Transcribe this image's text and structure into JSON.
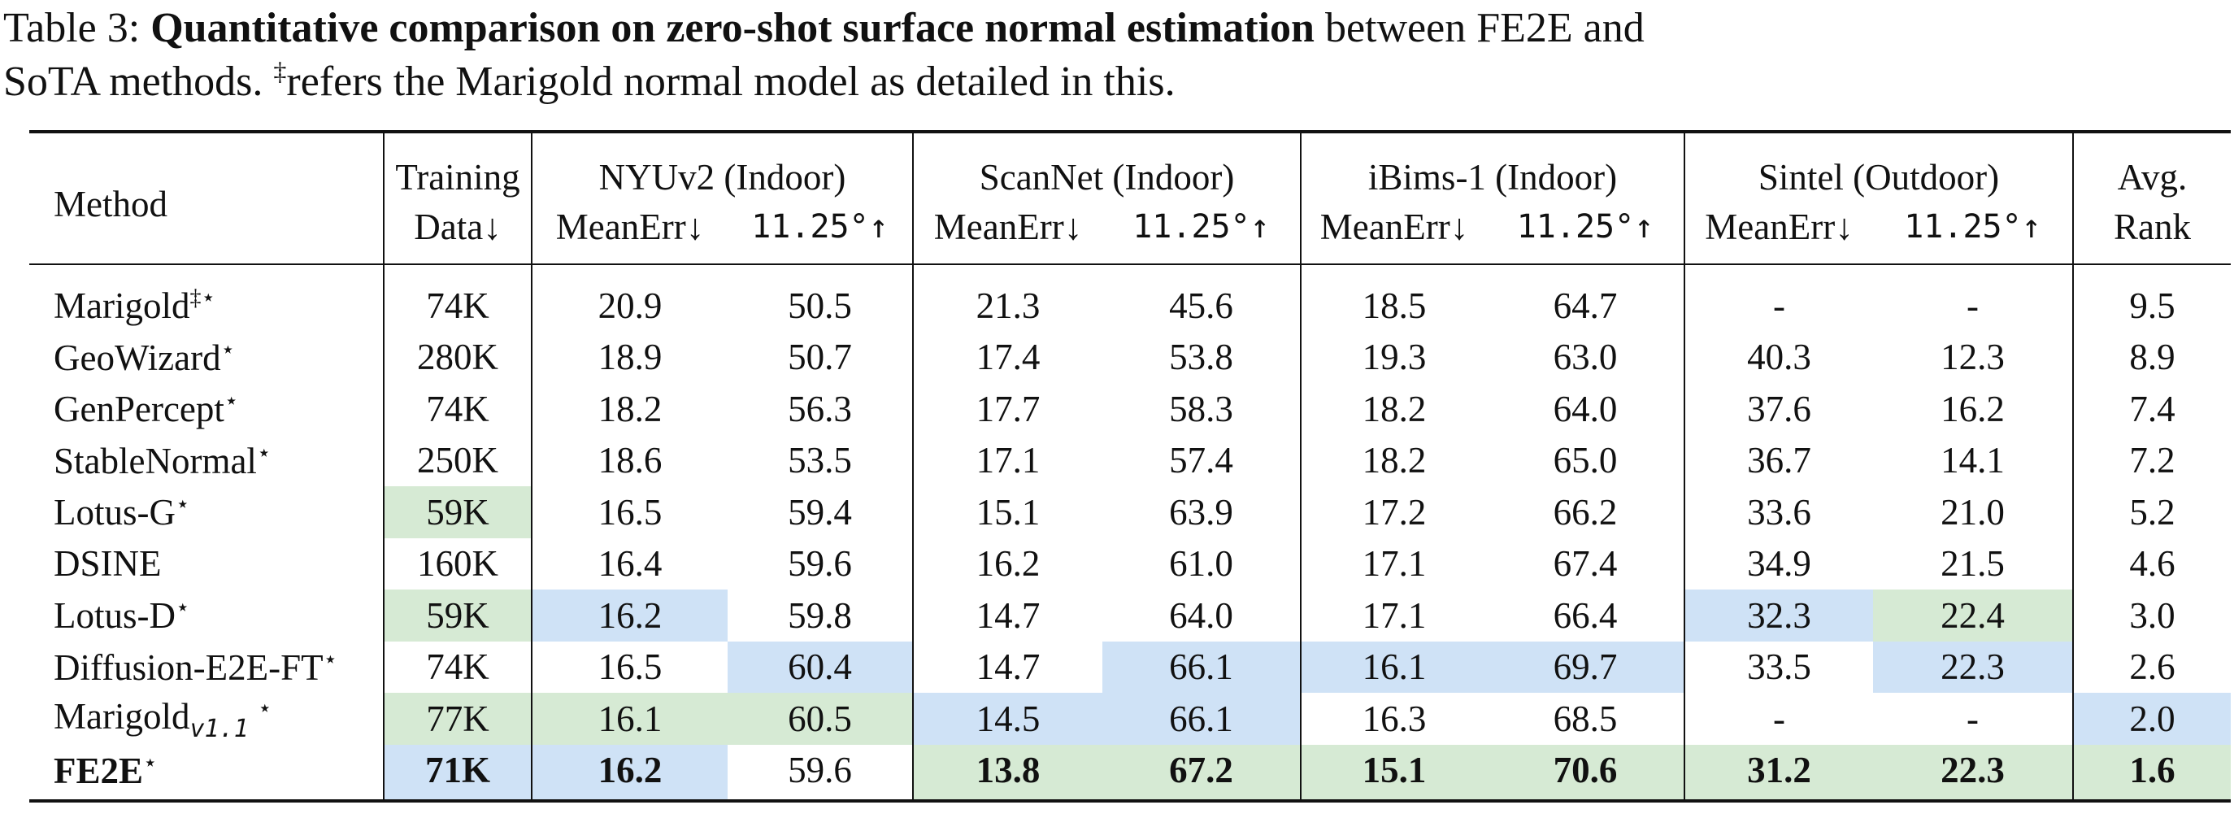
{
  "caption": {
    "label": "Table 3:",
    "bold_text": "Quantitative comparison on zero-shot surface normal estimation",
    "rest_line1": " between FE2E and",
    "line2_pre": "SoTA methods. ",
    "dagger": "‡",
    "line2_post": "refers the Marigold normal model as detailed in this."
  },
  "table": {
    "headers": {
      "method": "Method",
      "training_top": "Training",
      "training_bottom": "Data↓",
      "groups": [
        "NYUv2 (Indoor)",
        "ScanNet (Indoor)",
        "iBims-1 (Indoor)",
        "Sintel (Outdoor)"
      ],
      "meanerr": "MeanErr↓",
      "acc": "11.25°↑",
      "avg_top": "Avg.",
      "avg_bottom": "Rank"
    },
    "rows": [
      {
        "method": "Marigold",
        "sup": "‡⋆",
        "sub": "",
        "data": "74K",
        "vals": [
          "20.9",
          "50.5",
          "21.3",
          "45.6",
          "18.5",
          "64.7",
          "-",
          "-"
        ],
        "rank": "9.5"
      },
      {
        "method": "GeoWizard",
        "sup": "⋆",
        "sub": "",
        "data": "280K",
        "vals": [
          "18.9",
          "50.7",
          "17.4",
          "53.8",
          "19.3",
          "63.0",
          "40.3",
          "12.3"
        ],
        "rank": "8.9"
      },
      {
        "method": "GenPercept",
        "sup": "⋆",
        "sub": "",
        "data": "74K",
        "vals": [
          "18.2",
          "56.3",
          "17.7",
          "58.3",
          "18.2",
          "64.0",
          "37.6",
          "16.2"
        ],
        "rank": "7.4"
      },
      {
        "method": "StableNormal",
        "sup": "⋆",
        "sub": "",
        "data": "250K",
        "vals": [
          "18.6",
          "53.5",
          "17.1",
          "57.4",
          "18.2",
          "65.0",
          "36.7",
          "14.1"
        ],
        "rank": "7.2"
      },
      {
        "method": "Lotus-G",
        "sup": "⋆",
        "sub": "",
        "data": "59K",
        "vals": [
          "16.5",
          "59.4",
          "15.1",
          "63.9",
          "17.2",
          "66.2",
          "33.6",
          "21.0"
        ],
        "rank": "5.2"
      },
      {
        "method": "DSINE",
        "sup": "",
        "sub": "",
        "data": "160K",
        "vals": [
          "16.4",
          "59.6",
          "16.2",
          "61.0",
          "17.1",
          "67.4",
          "34.9",
          "21.5"
        ],
        "rank": "4.6"
      },
      {
        "method": "Lotus-D",
        "sup": "⋆",
        "sub": "",
        "data": "59K",
        "vals": [
          "16.2",
          "59.8",
          "14.7",
          "64.0",
          "17.1",
          "66.4",
          "32.3",
          "22.4"
        ],
        "rank": "3.0"
      },
      {
        "method": "Diffusion-E2E-FT",
        "sup": "⋆",
        "sub": "",
        "data": "74K",
        "vals": [
          "16.5",
          "60.4",
          "14.7",
          "66.1",
          "16.1",
          "69.7",
          "33.5",
          "22.3"
        ],
        "rank": "2.6"
      },
      {
        "method": "Marigold",
        "sup": "⋆",
        "sub": "v1.1",
        "data": "77K",
        "vals": [
          "16.1",
          "60.5",
          "14.5",
          "66.1",
          "16.3",
          "68.5",
          "-",
          "-"
        ],
        "rank": "2.0"
      },
      {
        "method": "FE2E",
        "sup": "⋆",
        "sub": "",
        "data": "71K",
        "vals": [
          "16.2",
          "59.6",
          "13.8",
          "67.2",
          "15.1",
          "70.6",
          "31.2",
          "22.3"
        ],
        "rank": "1.6"
      }
    ],
    "highlight_colors": {
      "blue": "#cfe2f6",
      "green": "#d6ead4"
    },
    "highlights": [
      {
        "row": 4,
        "col": 0,
        "color": "green"
      },
      {
        "row": 6,
        "col": 0,
        "color": "green"
      },
      {
        "row": 6,
        "col": 1,
        "color": "blue"
      },
      {
        "row": 6,
        "col": 7,
        "color": "blue"
      },
      {
        "row": 6,
        "col": 8,
        "color": "green"
      },
      {
        "row": 7,
        "col": 2,
        "color": "blue"
      },
      {
        "row": 7,
        "col": 4,
        "color": "blue"
      },
      {
        "row": 7,
        "col": 5,
        "color": "blue"
      },
      {
        "row": 7,
        "col": 6,
        "color": "blue"
      },
      {
        "row": 7,
        "col": 8,
        "color": "blue"
      },
      {
        "row": 8,
        "col": 0,
        "color": "green"
      },
      {
        "row": 8,
        "col": 1,
        "color": "green"
      },
      {
        "row": 8,
        "col": 2,
        "color": "green"
      },
      {
        "row": 8,
        "col": 3,
        "color": "blue"
      },
      {
        "row": 8,
        "col": 4,
        "color": "blue"
      },
      {
        "row": 8,
        "col": 9,
        "color": "blue"
      },
      {
        "row": 9,
        "col": 0,
        "color": "blue"
      },
      {
        "row": 9,
        "col": 1,
        "color": "blue"
      },
      {
        "row": 9,
        "col": 3,
        "color": "green"
      },
      {
        "row": 9,
        "col": 4,
        "color": "green"
      },
      {
        "row": 9,
        "col": 5,
        "color": "green"
      },
      {
        "row": 9,
        "col": 6,
        "color": "green"
      },
      {
        "row": 9,
        "col": 7,
        "color": "green"
      },
      {
        "row": 9,
        "col": 8,
        "color": "green"
      },
      {
        "row": 9,
        "col": 9,
        "color": "green"
      }
    ],
    "bold_row": 9,
    "bold_cols": [
      0,
      1,
      3,
      4,
      5,
      6,
      7,
      8,
      9
    ]
  }
}
